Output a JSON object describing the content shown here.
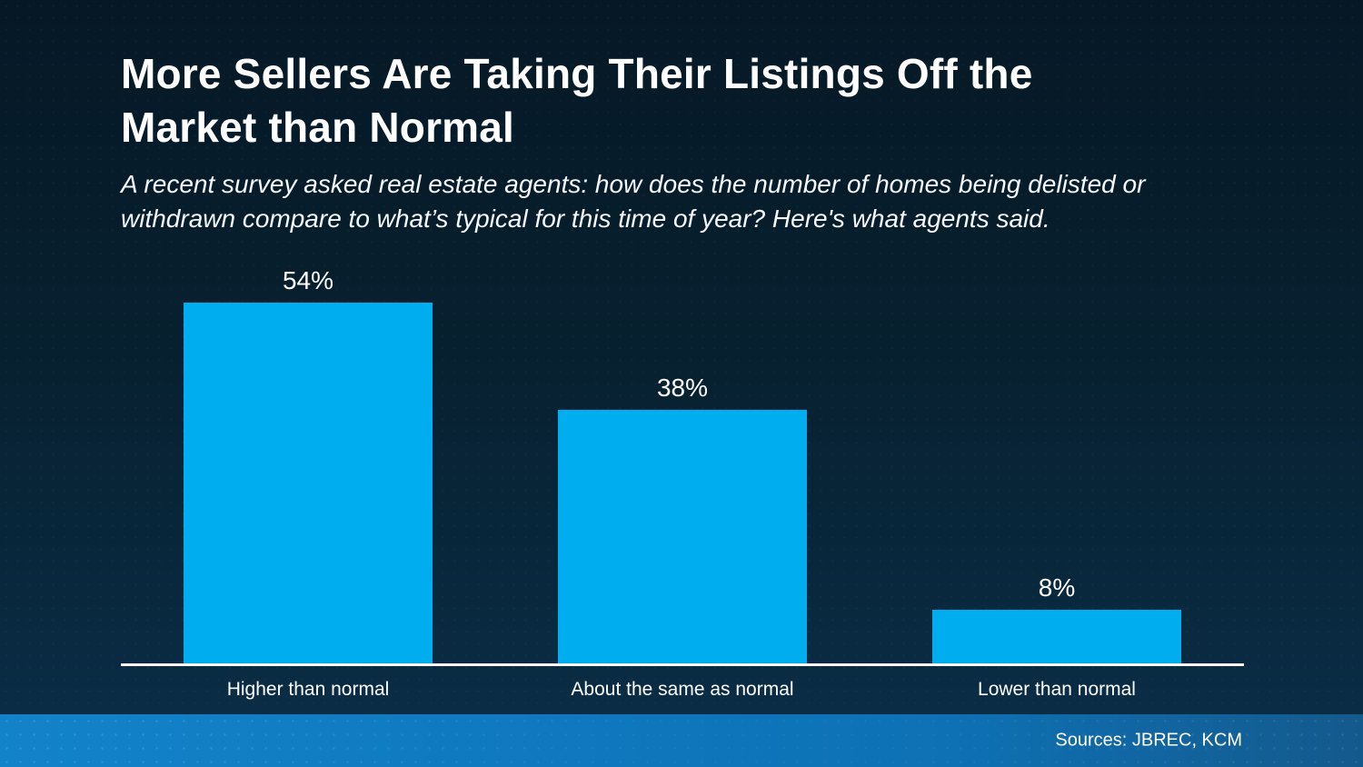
{
  "header": {
    "title": "More Sellers Are Taking Their Listings Off the Market than Normal",
    "subtitle": "A recent survey asked real estate agents: how does the number of homes being delisted or withdrawn compare to what’s typical for this time of year? Here's what agents said."
  },
  "chart_data": {
    "type": "bar",
    "categories": [
      "Higher than normal",
      "About the same as normal",
      "Lower than normal"
    ],
    "values": [
      54,
      38,
      8
    ],
    "value_labels": [
      "54%",
      "38%",
      "8%"
    ],
    "title": "",
    "xlabel": "",
    "ylabel": "",
    "ylim": [
      0,
      60
    ],
    "grid": false,
    "legend": false,
    "bar_color": "#00AEEF",
    "axis_line_color": "#FFFFFF",
    "label_color": "#FFFFFF"
  },
  "footer": {
    "sources": "Sources: JBREC, KCM"
  },
  "colors": {
    "background_top": "#061826",
    "background_bottom": "#0A2E48",
    "footer_left": "#1383C9",
    "footer_right": "#14598C",
    "text": "#FFFFFF"
  }
}
